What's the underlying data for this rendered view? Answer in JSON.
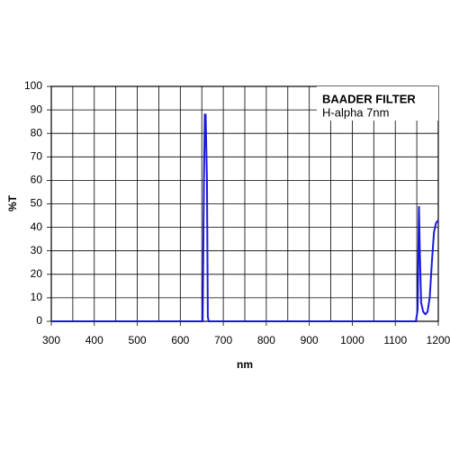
{
  "chart_data": {
    "type": "line",
    "x_label": "nm",
    "y_label": "%T",
    "annotation_title": "BAADER FILTER",
    "annotation_subtitle": "H-alpha 7nm",
    "xlim": [
      300,
      1200
    ],
    "ylim": [
      0,
      100
    ],
    "xticks": [
      300,
      400,
      500,
      600,
      700,
      800,
      900,
      1000,
      1100,
      1200
    ],
    "x_minor_grid": [
      350,
      450,
      550,
      650,
      750,
      850,
      950,
      1050,
      1150
    ],
    "yticks": [
      0,
      10,
      20,
      30,
      40,
      50,
      60,
      70,
      80,
      90,
      100
    ],
    "grid": true,
    "series": [
      {
        "color": "#1a1adc",
        "x": [
          300,
          648,
          652,
          655,
          657,
          659,
          660,
          662,
          664,
          666,
          1148,
          1152,
          1155,
          1157,
          1160,
          1165,
          1170,
          1175,
          1180,
          1185,
          1190,
          1195,
          1200
        ],
        "values": [
          0,
          0,
          0,
          60,
          88,
          88,
          78,
          60,
          2,
          0,
          0,
          5,
          49,
          30,
          8,
          4,
          3,
          4,
          10,
          25,
          38,
          42,
          43
        ]
      }
    ]
  }
}
